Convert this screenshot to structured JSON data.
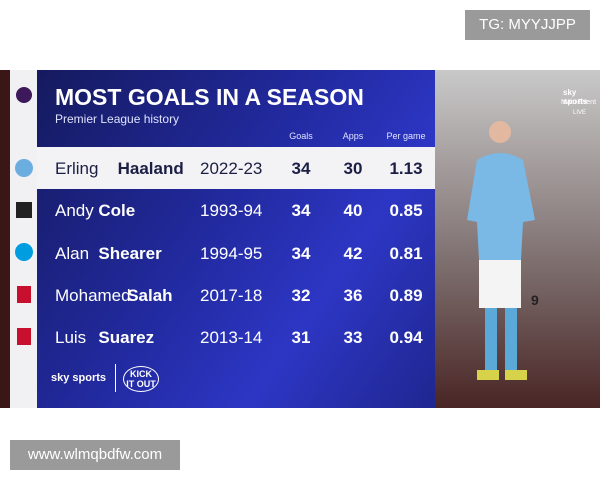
{
  "watermark_top": "TG: MYYJJPP",
  "watermark_bottom": "www.wlmqbdfw.com",
  "header": {
    "title": "MOST GOALS IN A SEASON",
    "subtitle": "Premier League history"
  },
  "table": {
    "columns": [
      "Goals",
      "Apps",
      "Per game"
    ],
    "rows": [
      {
        "first_name": "Erling",
        "last_name": "Haaland",
        "season": "2022-23",
        "goals": 34,
        "apps": 30,
        "per_game": 1.13
      },
      {
        "first_name": "Andy",
        "last_name": "Cole",
        "season": "1993-94",
        "goals": 34,
        "apps": 40,
        "per_game": 0.85
      },
      {
        "first_name": "Alan",
        "last_name": "Shearer",
        "season": "1994-95",
        "goals": 34,
        "apps": 42,
        "per_game": 0.81
      },
      {
        "first_name": "Mohamed",
        "last_name": "Salah",
        "season": "2017-18",
        "goals": 32,
        "apps": 36,
        "per_game": 0.89
      },
      {
        "first_name": "Luis",
        "last_name": "Suarez",
        "season": "2013-14",
        "goals": 31,
        "apps": 33,
        "per_game": 0.94
      }
    ]
  },
  "footer": {
    "brand": "sky sports",
    "campaign": "KICK IT OUT"
  },
  "photo": {
    "channel": "sky sports",
    "channel_sub": "Main Event",
    "badge": "LIVE",
    "shirt_number": "9"
  }
}
